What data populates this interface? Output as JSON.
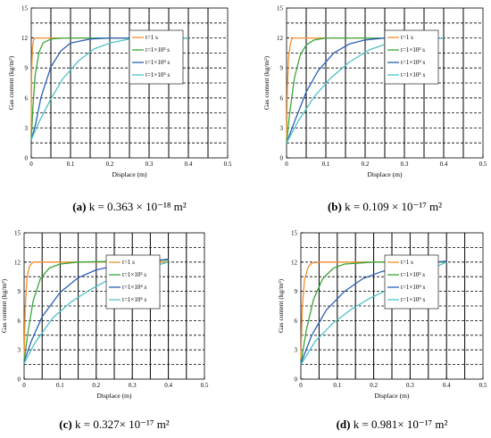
{
  "chart_data": [
    {
      "type": "line",
      "caption": {
        "tag": "(a)",
        "text": " k = 0.363 × 10⁻¹⁸ m²"
      },
      "xlabel": "Displace (m)",
      "ylabel": "Gas content (kg/m³)",
      "xlim": [
        0,
        0.5
      ],
      "ylim": [
        0,
        15
      ],
      "xticks": [
        0,
        0.1,
        0.2,
        0.3,
        0.4,
        0.5
      ],
      "yticks": [
        0,
        3,
        6,
        9,
        12,
        15
      ],
      "grid": "dashed",
      "legend": "top-right",
      "series": [
        {
          "name": "t=1 s",
          "color": "#f28e2b",
          "x": [
            0,
            0.001,
            0.003,
            0.006,
            0.01,
            0.02,
            0.05,
            0.4
          ],
          "y": [
            2,
            8.5,
            11,
            11.8,
            12,
            12,
            12,
            12
          ]
        },
        {
          "name": "t=1×10³ s",
          "color": "#3aa63a",
          "x": [
            0,
            0.004,
            0.01,
            0.02,
            0.03,
            0.05,
            0.08,
            0.4
          ],
          "y": [
            1.8,
            5,
            8.3,
            10.6,
            11.5,
            11.9,
            12,
            12
          ]
        },
        {
          "name": "t=1×10⁴ s",
          "color": "#2b5fb8",
          "x": [
            0,
            0.01,
            0.025,
            0.05,
            0.075,
            0.1,
            0.15,
            0.2,
            0.4
          ],
          "y": [
            1.8,
            3.2,
            6.1,
            9.1,
            10.7,
            11.5,
            11.9,
            12,
            12
          ]
        },
        {
          "name": "t=1×10⁵ s",
          "color": "#4fc1c9",
          "x": [
            0,
            0.02,
            0.05,
            0.08,
            0.12,
            0.16,
            0.2,
            0.25,
            0.3,
            0.4
          ],
          "y": [
            1.8,
            3.6,
            5.9,
            7.9,
            9.7,
            10.9,
            11.5,
            11.9,
            12,
            12
          ]
        }
      ]
    },
    {
      "type": "line",
      "caption": {
        "tag": "(b)",
        "text": " k = 0.109 × 10⁻¹⁷ m²"
      },
      "xlabel": "Displace (m)",
      "ylabel": "Gas content (kg/m³)",
      "xlim": [
        0,
        0.5
      ],
      "ylim": [
        0,
        15
      ],
      "xticks": [
        0,
        0.1,
        0.2,
        0.3,
        0.4,
        0.5
      ],
      "yticks": [
        0,
        3,
        6,
        9,
        12,
        15
      ],
      "grid": "dashed",
      "legend": "top-right",
      "series": [
        {
          "name": "t=1 s",
          "color": "#f28e2b",
          "x": [
            0,
            0.002,
            0.005,
            0.01,
            0.015,
            0.03,
            0.4
          ],
          "y": [
            1.5,
            7,
            10,
            11.5,
            12,
            12,
            12
          ]
        },
        {
          "name": "t=1×10³ s",
          "color": "#3aa63a",
          "x": [
            0,
            0.008,
            0.02,
            0.035,
            0.05,
            0.07,
            0.1,
            0.4
          ],
          "y": [
            1.5,
            4.5,
            8,
            10.3,
            11.3,
            11.8,
            12,
            12
          ]
        },
        {
          "name": "t=1×10⁴ s",
          "color": "#2b5fb8",
          "x": [
            0,
            0.02,
            0.05,
            0.08,
            0.12,
            0.16,
            0.2,
            0.25,
            0.4
          ],
          "y": [
            1.5,
            3.6,
            6.6,
            8.7,
            10.5,
            11.4,
            11.8,
            12,
            12
          ]
        },
        {
          "name": "t=1×10⁵ s",
          "color": "#4fc1c9",
          "x": [
            0,
            0.03,
            0.07,
            0.11,
            0.16,
            0.21,
            0.26,
            0.3,
            0.4
          ],
          "y": [
            1.5,
            3.7,
            6.1,
            7.9,
            9.6,
            10.8,
            11.5,
            11.9,
            12
          ]
        }
      ]
    },
    {
      "type": "line",
      "caption": {
        "tag": "(c)",
        "text": " k = 0.327× 10⁻¹⁷ m²"
      },
      "xlabel": "Displace (m)",
      "ylabel": "Gas content (kg/m³)",
      "xlim": [
        0,
        0.5
      ],
      "ylim": [
        0,
        15
      ],
      "xticks": [
        0,
        0.1,
        0.2,
        0.3,
        0.4,
        0.5
      ],
      "yticks": [
        0,
        3,
        6,
        9,
        12,
        15
      ],
      "grid": "dashed",
      "legend": "top-right",
      "series": [
        {
          "name": "t=1 s",
          "color": "#f28e2b",
          "x": [
            0,
            0.003,
            0.008,
            0.015,
            0.025,
            0.04,
            0.4
          ],
          "y": [
            2,
            7.2,
            10.4,
            11.6,
            12,
            12,
            12
          ]
        },
        {
          "name": "t=1×10³ s",
          "color": "#3aa63a",
          "x": [
            0,
            0.01,
            0.025,
            0.045,
            0.07,
            0.1,
            0.15,
            0.4
          ],
          "y": [
            1.8,
            4.6,
            8,
            10.3,
            11.4,
            11.8,
            12,
            12.2
          ]
        },
        {
          "name": "t=1×10⁴ s",
          "color": "#2b5fb8",
          "x": [
            0,
            0.02,
            0.05,
            0.1,
            0.15,
            0.2,
            0.25,
            0.3,
            0.4
          ],
          "y": [
            1.8,
            3.9,
            6.4,
            8.9,
            10.4,
            11.2,
            11.6,
            11.9,
            12.3
          ]
        },
        {
          "name": "t=1×10⁵ s",
          "color": "#4fc1c9",
          "x": [
            0,
            0.03,
            0.08,
            0.13,
            0.18,
            0.23,
            0.28,
            0.33,
            0.38,
            0.4
          ],
          "y": [
            1.6,
            3.7,
            6.3,
            7.9,
            9.1,
            10.1,
            10.9,
            11.4,
            11.8,
            12
          ]
        }
      ]
    },
    {
      "type": "line",
      "caption": {
        "tag": "(d)",
        "text": " k = 0.981× 10⁻¹⁷ m²"
      },
      "xlabel": "Displace (m)",
      "ylabel": "Gas content (kg/m³)",
      "xlim": [
        0,
        0.5
      ],
      "ylim": [
        0,
        15
      ],
      "xticks": [
        0,
        0.1,
        0.2,
        0.3,
        0.4,
        0.5
      ],
      "yticks": [
        0,
        3,
        6,
        9,
        12,
        15
      ],
      "grid": "dashed",
      "legend": "top-right",
      "series": [
        {
          "name": "t=1 s",
          "color": "#f28e2b",
          "x": [
            0,
            0.004,
            0.01,
            0.02,
            0.03,
            0.05,
            0.4
          ],
          "y": [
            2,
            7.3,
            10.2,
            11.5,
            11.9,
            12,
            12
          ]
        },
        {
          "name": "t=1×10³ s",
          "color": "#3aa63a",
          "x": [
            0,
            0.015,
            0.035,
            0.06,
            0.09,
            0.12,
            0.2,
            0.4
          ],
          "y": [
            1.6,
            5,
            8.2,
            10.3,
            11.4,
            11.8,
            12,
            12
          ]
        },
        {
          "name": "t=1×10⁴ s",
          "color": "#2b5fb8",
          "x": [
            0,
            0.03,
            0.07,
            0.12,
            0.17,
            0.22,
            0.27,
            0.32,
            0.4
          ],
          "y": [
            1.6,
            4.5,
            7.1,
            9,
            10.3,
            11,
            11.5,
            11.8,
            12.1
          ]
        },
        {
          "name": "t=1×10⁵ s",
          "color": "#4fc1c9",
          "x": [
            0,
            0.04,
            0.09,
            0.14,
            0.19,
            0.24,
            0.29,
            0.34,
            0.4
          ],
          "y": [
            1.5,
            3.9,
            5.8,
            7.2,
            8.3,
            9.2,
            10.1,
            11,
            12
          ]
        }
      ]
    }
  ]
}
